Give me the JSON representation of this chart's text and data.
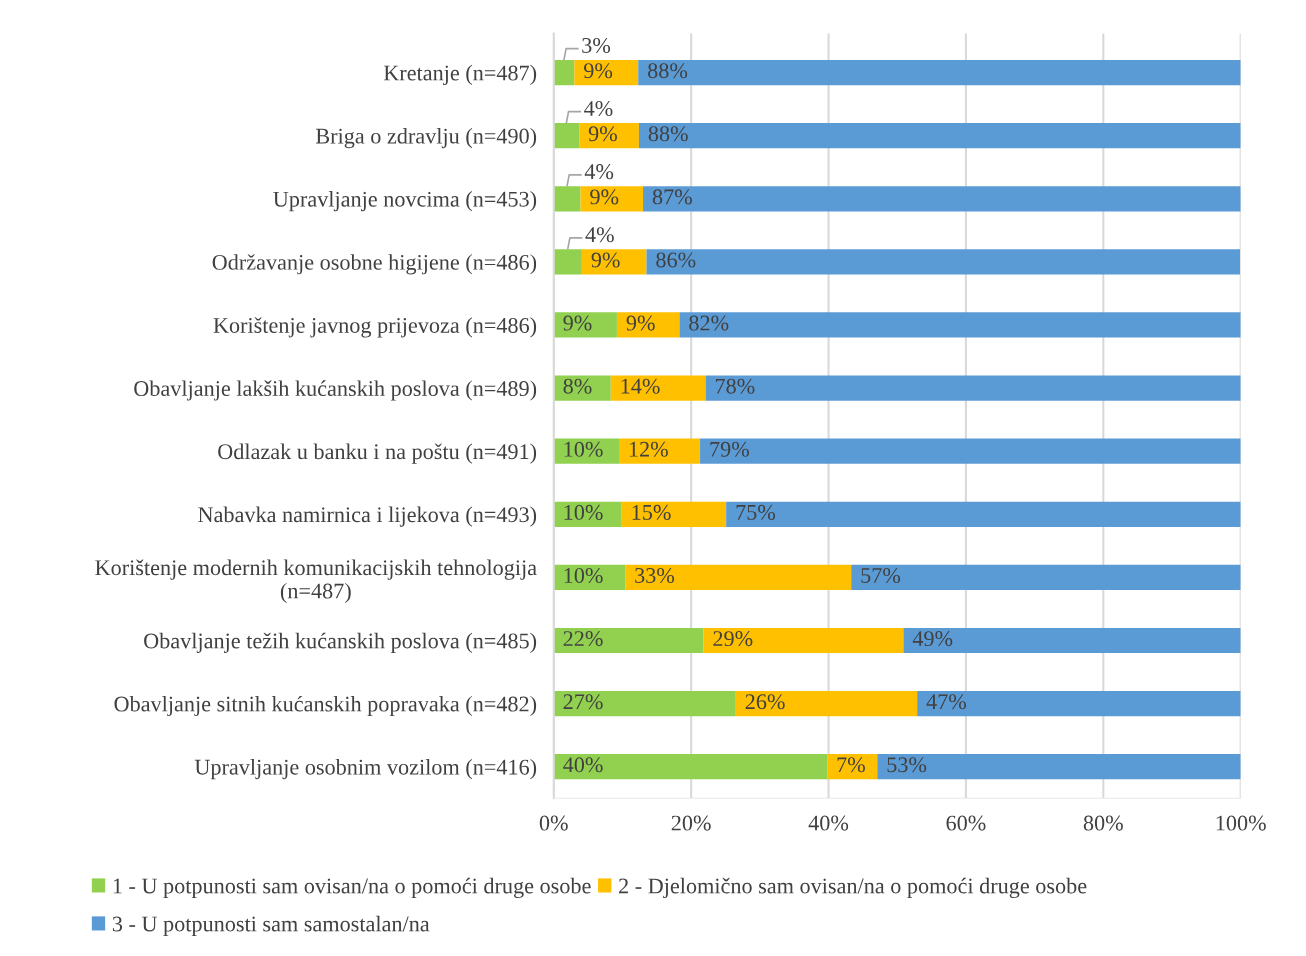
{
  "chart_data": {
    "type": "bar",
    "orientation": "horizontal",
    "stacked": true,
    "categories": [
      "Kretanje (n=487)",
      "Briga o zdravlju (n=490)",
      "Upravljanje novcima (n=453)",
      "Održavanje osobne higijene (n=486)",
      "Korištenje javnog prijevoza (n=486)",
      "Obavljanje lakših kućanskih poslova (n=489)",
      "Odlazak u banku i na poštu (n=491)",
      "Nabavka namirnica i lijekova (n=493)",
      "Korištenje modernih komunikacijskih tehnologija\n(n=487)",
      "Obavljanje težih kućanskih poslova (n=485)",
      "Obavljanje sitnih kućanskih popravaka (n=482)",
      "Upravljanje osobnim vozilom (n=416)"
    ],
    "series": [
      {
        "name": "1 - U potpunosti sam ovisan/na o pomoći druge osobe",
        "color": "#92d050",
        "values": [
          3.0,
          3.7,
          3.9,
          4.1,
          9.2,
          8.3,
          9.5,
          9.9,
          10.4,
          21.8,
          26.5,
          39.8
        ],
        "value_labels": [
          "3%",
          "4%",
          "4%",
          "4%",
          "9%",
          "8%",
          "10%",
          "10%",
          "10%",
          "22%",
          "27%",
          "40%"
        ]
      },
      {
        "name": "2 - Djelomično sam ovisan/na o pomoći druge osobe",
        "color": "#ffc000",
        "values": [
          9.3,
          8.7,
          9.1,
          9.4,
          9.1,
          13.8,
          11.8,
          15.2,
          32.9,
          29.1,
          26.4,
          7.3
        ],
        "value_labels": [
          "9%",
          "9%",
          "9%",
          "9%",
          "9%",
          "14%",
          "12%",
          "15%",
          "33%",
          "29%",
          "26%",
          "7%"
        ]
      },
      {
        "name": "3 - U potpunosti sam samostalan/na",
        "color": "#5b9bd5",
        "values": [
          87.7,
          87.6,
          87.0,
          86.4,
          81.7,
          77.9,
          78.7,
          74.9,
          56.7,
          49.1,
          47.1,
          52.9
        ],
        "value_labels": [
          "88%",
          "88%",
          "87%",
          "86%",
          "82%",
          "78%",
          "79%",
          "75%",
          "57%",
          "49%",
          "47%",
          "53%"
        ]
      }
    ],
    "xlim": [
      0,
      100
    ],
    "xticks": [
      {
        "value": 0,
        "label": "0%"
      },
      {
        "value": 20,
        "label": "20%"
      },
      {
        "value": 40,
        "label": "40%"
      },
      {
        "value": 60,
        "label": "60%"
      },
      {
        "value": 80,
        "label": "80%"
      },
      {
        "value": 100,
        "label": "100%"
      }
    ],
    "grid": "x",
    "legend": "bottom"
  }
}
